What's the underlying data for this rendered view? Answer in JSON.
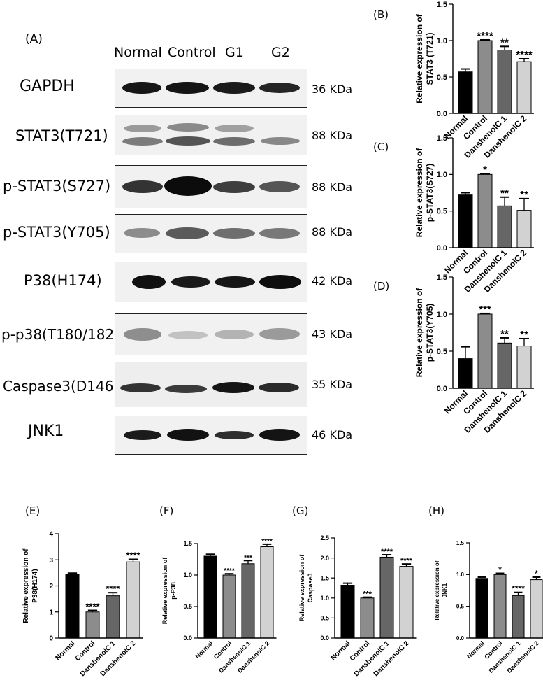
{
  "western_blot": {
    "panel_label": "(A)",
    "lanes": [
      "Normal",
      "Control",
      "G1",
      "G2"
    ],
    "rows": [
      {
        "protein": "GAPDH",
        "kda": "36 KDa"
      },
      {
        "protein": "STAT3(T721)",
        "kda": "88 KDa"
      },
      {
        "protein": "p-STAT3(S727)",
        "kda": "88 KDa"
      },
      {
        "protein": "p-STAT3(Y705)",
        "kda": "88 KDa"
      },
      {
        "protein": "P38(H174)",
        "kda": "42 KDa"
      },
      {
        "protein": "p-p38(T180/182)",
        "kda": "43 KDa"
      },
      {
        "protein": "Caspase3(D146)",
        "kda": "35 KDa"
      },
      {
        "protein": "JNK1",
        "kda": "46 KDa"
      }
    ]
  },
  "chart_data": [
    {
      "panel": "(B)",
      "type": "bar",
      "ylabel": [
        "Relative expression of",
        "STAT3 (T721)"
      ],
      "categories": [
        "Normal",
        "Control",
        "DanshenolC 1",
        "DanshenolC 2"
      ],
      "values": [
        0.57,
        1.0,
        0.87,
        0.71
      ],
      "errors": [
        0.04,
        0.01,
        0.05,
        0.04
      ],
      "significance": [
        "",
        "****",
        "**",
        "****"
      ],
      "ylim": [
        0,
        1.5
      ],
      "yticks": [
        "0.0",
        "0.5",
        "1.0",
        "1.5"
      ],
      "colors": [
        "#000000",
        "#8c8c8c",
        "#666666",
        "#d2d2d2"
      ]
    },
    {
      "panel": "(C)",
      "type": "bar",
      "ylabel": [
        "Relative expression of",
        "p-STAT3(S727)"
      ],
      "categories": [
        "Normal",
        "Control",
        "DanshenolC 1",
        "DanshenolC 2"
      ],
      "values": [
        0.72,
        1.0,
        0.57,
        0.51
      ],
      "errors": [
        0.03,
        0.01,
        0.12,
        0.16
      ],
      "significance": [
        "",
        "*",
        "**",
        "**"
      ],
      "ylim": [
        0,
        1.5
      ],
      "yticks": [
        "0.0",
        "0.5",
        "1.0",
        "1.5"
      ],
      "colors": [
        "#000000",
        "#8c8c8c",
        "#666666",
        "#d2d2d2"
      ]
    },
    {
      "panel": "(D)",
      "type": "bar",
      "ylabel": [
        "Relative expression of",
        "p-STAT3(Y705)"
      ],
      "categories": [
        "Normal",
        "Control",
        "DanshenolC 1",
        "DanshenolC 2"
      ],
      "values": [
        0.4,
        1.0,
        0.61,
        0.57
      ],
      "errors": [
        0.16,
        0.01,
        0.07,
        0.1
      ],
      "significance": [
        "",
        "***",
        "**",
        "**"
      ],
      "ylim": [
        0,
        1.5
      ],
      "yticks": [
        "0.0",
        "0.5",
        "1.0",
        "1.5"
      ],
      "colors": [
        "#000000",
        "#8c8c8c",
        "#666666",
        "#d2d2d2"
      ]
    },
    {
      "panel": "(E)",
      "type": "bar",
      "ylabel": [
        "Relative expression of",
        "P38(H174)"
      ],
      "categories": [
        "Normal",
        "Control",
        "DanshenolC 1",
        "DanshenolC 2"
      ],
      "values": [
        2.45,
        1.0,
        1.62,
        2.92
      ],
      "errors": [
        0.04,
        0.06,
        0.12,
        0.1
      ],
      "significance": [
        "",
        "****",
        "****",
        "****"
      ],
      "ylim": [
        0,
        4
      ],
      "yticks": [
        "0",
        "1",
        "2",
        "3",
        "4"
      ],
      "colors": [
        "#000000",
        "#8c8c8c",
        "#666666",
        "#d2d2d2"
      ]
    },
    {
      "panel": "(F)",
      "type": "bar",
      "ylabel": [
        "Relative expression of",
        "p-P38"
      ],
      "categories": [
        "Normal",
        "Control",
        "DanshenolC 1",
        "DanshenolC 2"
      ],
      "values": [
        1.3,
        1.0,
        1.18,
        1.45
      ],
      "errors": [
        0.03,
        0.02,
        0.05,
        0.04
      ],
      "significance": [
        "",
        "****",
        "***",
        "****"
      ],
      "ylim": [
        0,
        1.5
      ],
      "yticks": [
        "0.0",
        "0.5",
        "1.0",
        "1.5"
      ],
      "colors": [
        "#000000",
        "#8c8c8c",
        "#666666",
        "#d2d2d2"
      ]
    },
    {
      "panel": "(G)",
      "type": "bar",
      "ylabel": [
        "Relative expression of",
        "Caspase3"
      ],
      "categories": [
        "Normal",
        "Control",
        "DanshenolC 1",
        "DanshenolC 2"
      ],
      "values": [
        1.32,
        1.0,
        2.02,
        1.79
      ],
      "errors": [
        0.05,
        0.02,
        0.06,
        0.06
      ],
      "significance": [
        "",
        "***",
        "****",
        "****"
      ],
      "ylim": [
        0,
        2.5
      ],
      "yticks": [
        "0.0",
        "0.5",
        "1.0",
        "1.5",
        "2.0",
        "2.5"
      ],
      "colors": [
        "#000000",
        "#8c8c8c",
        "#666666",
        "#d2d2d2"
      ]
    },
    {
      "panel": "(H)",
      "type": "bar",
      "ylabel": [
        "Relative expression of",
        "JNK1"
      ],
      "categories": [
        "Normal",
        "Control",
        "DanshenolC 1",
        "DanshenolC 2"
      ],
      "values": [
        0.94,
        1.0,
        0.67,
        0.92
      ],
      "errors": [
        0.02,
        0.02,
        0.05,
        0.04
      ],
      "significance": [
        "",
        "*",
        "****",
        "*"
      ],
      "ylim": [
        0,
        1.5
      ],
      "yticks": [
        "0.0",
        "0.5",
        "1.0",
        "1.5"
      ],
      "colors": [
        "#000000",
        "#8c8c8c",
        "#666666",
        "#d2d2d2"
      ]
    }
  ]
}
